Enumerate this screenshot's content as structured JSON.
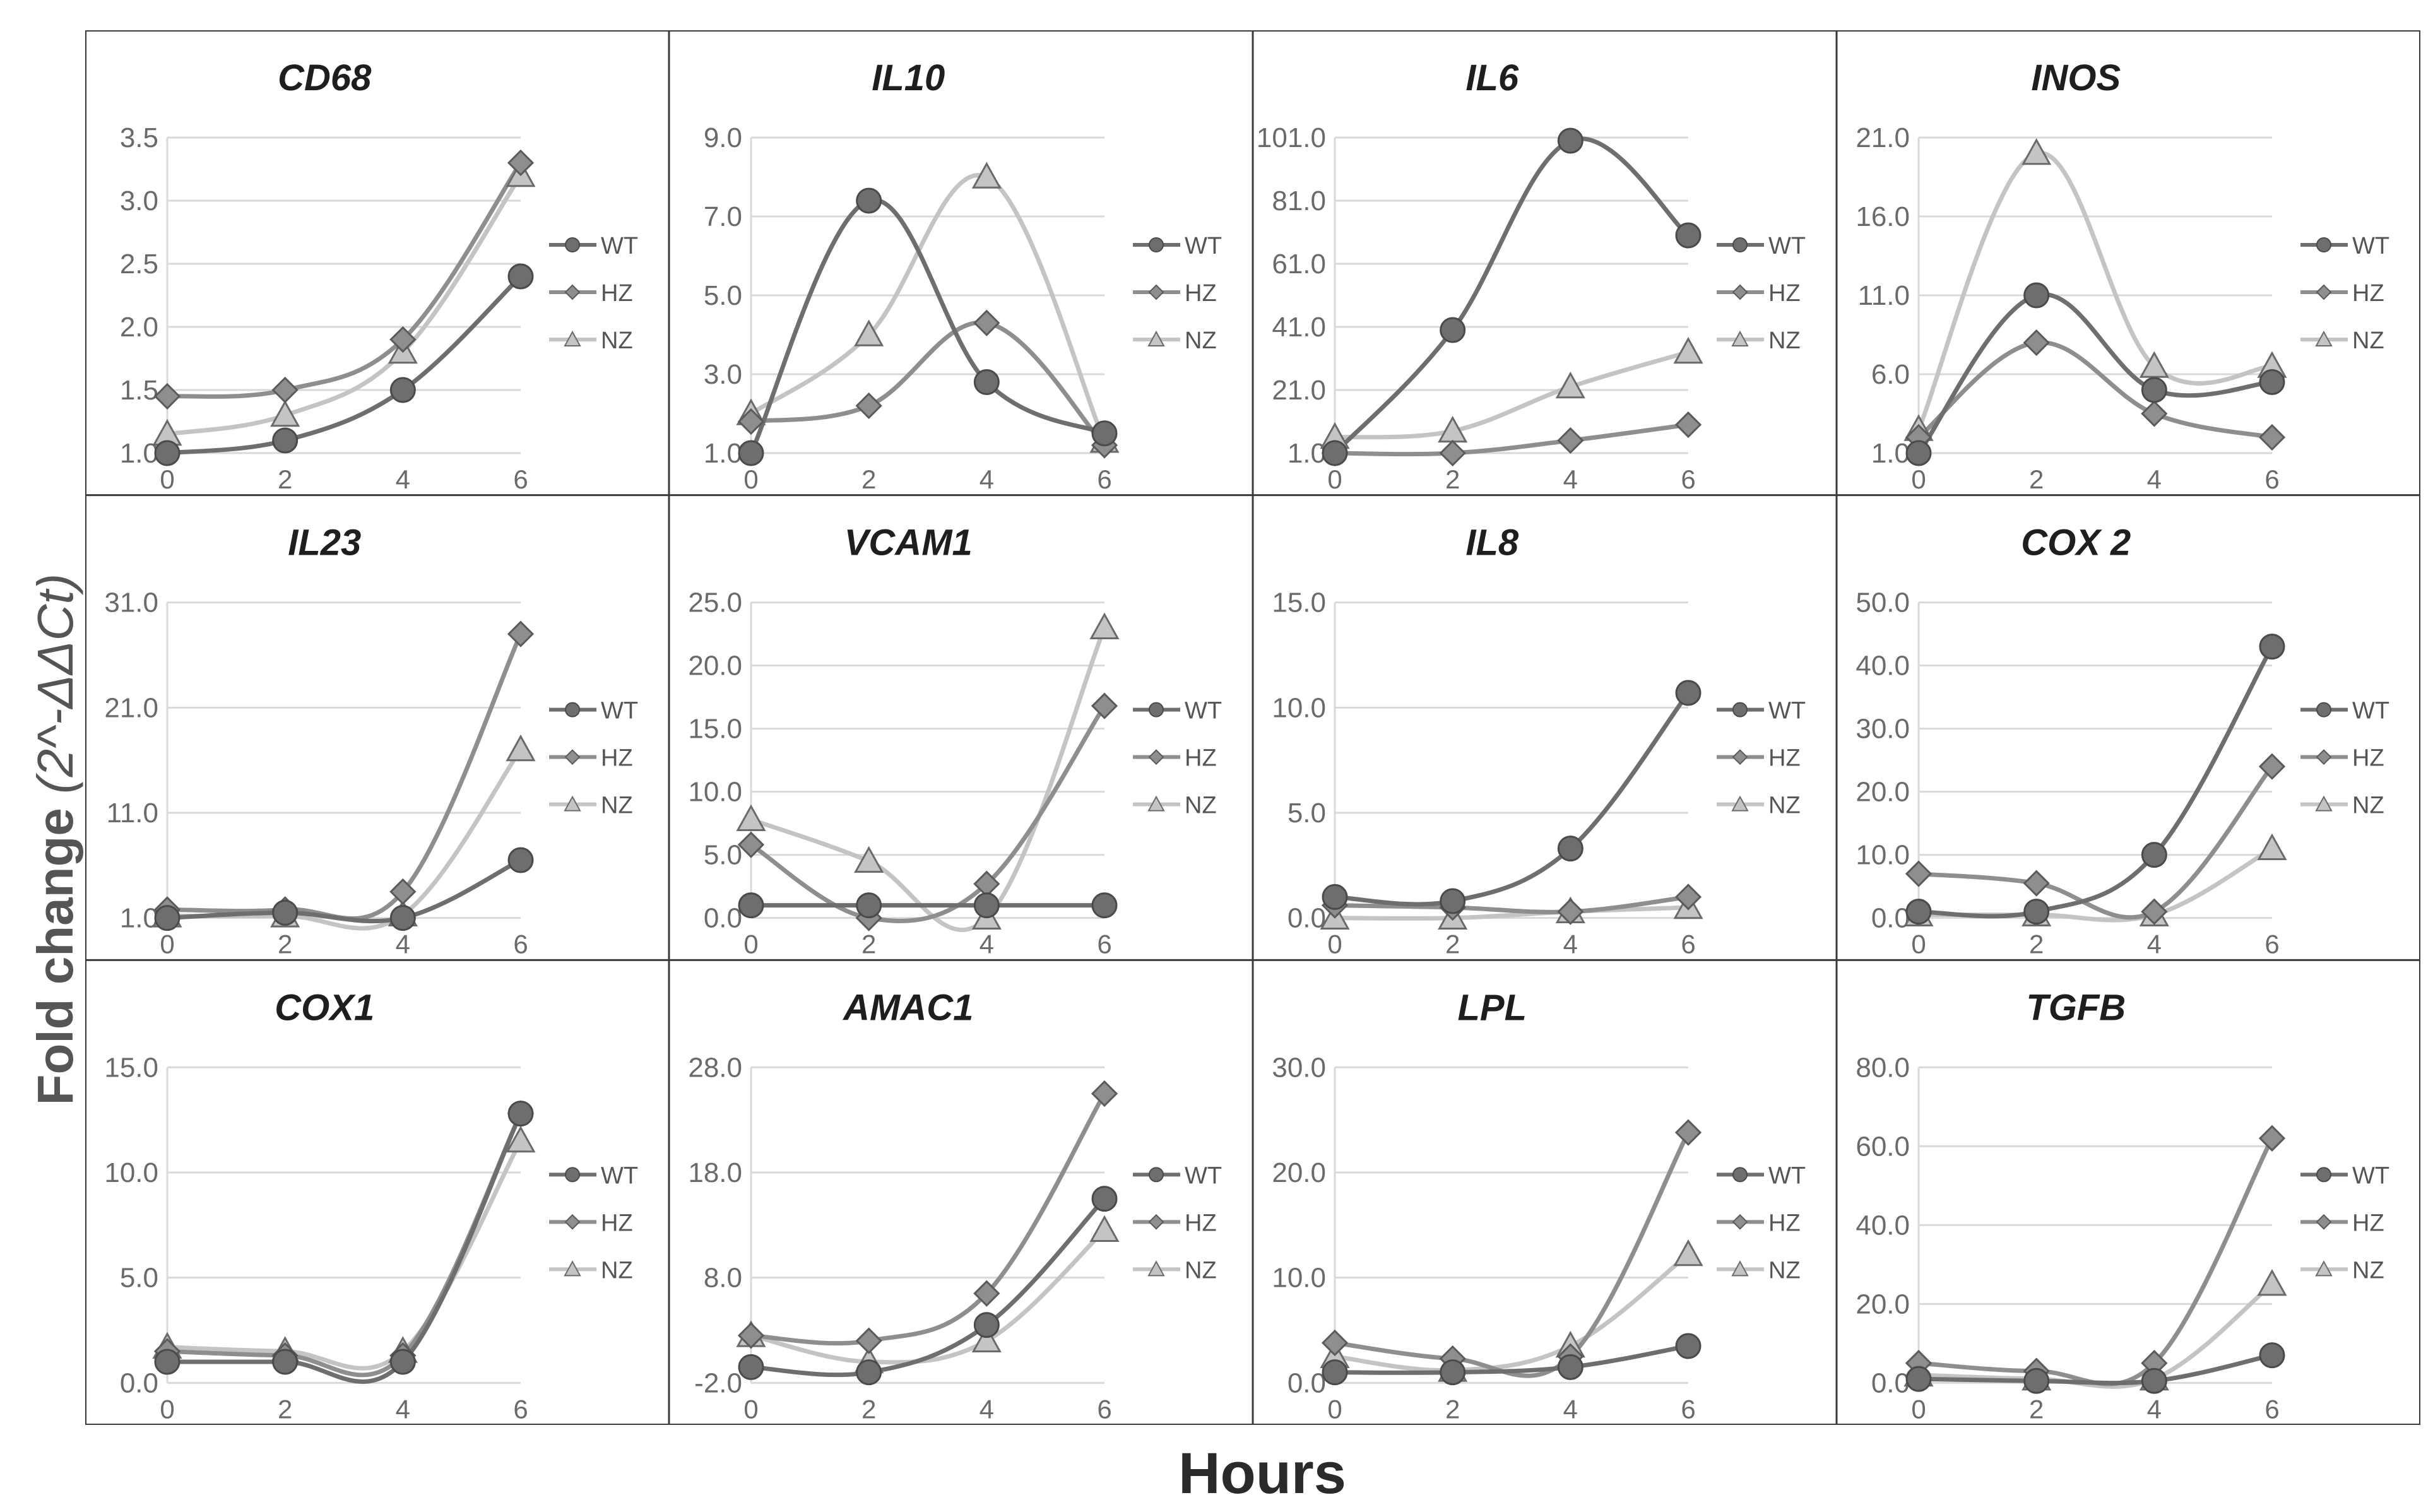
{
  "figure": {
    "ylabel_main": "Fold change ",
    "ylabel_formula": "(2^-ΔΔCt)",
    "xlabel": "Hours",
    "series_colors": {
      "WT": "#6e6e6e",
      "HZ": "#8e8e8e",
      "NZ": "#c4c4c4"
    },
    "frame_color": "#3a3a3a",
    "grid_color": "#d9d9d9"
  },
  "chart_data": [
    {
      "type": "line",
      "title": "CD68",
      "categories": [
        "0",
        "2",
        "4",
        "6"
      ],
      "ylim": [
        1.0,
        3.5
      ],
      "yticks": [
        "1.0",
        "1.5",
        "2.0",
        "2.5",
        "3.0",
        "3.5"
      ],
      "series": [
        {
          "name": "WT",
          "marker": "circle",
          "values": [
            1.0,
            1.1,
            1.5,
            2.4
          ]
        },
        {
          "name": "HZ",
          "marker": "diamond",
          "values": [
            1.45,
            1.5,
            1.9,
            3.3
          ]
        },
        {
          "name": "NZ",
          "marker": "triangle",
          "values": [
            1.15,
            1.3,
            1.8,
            3.2
          ]
        }
      ],
      "legend": "right"
    },
    {
      "type": "line",
      "title": "IL10",
      "categories": [
        "0",
        "2",
        "4",
        "6"
      ],
      "ylim": [
        1.0,
        9.0
      ],
      "yticks": [
        "1.0",
        "3.0",
        "5.0",
        "7.0",
        "9.0"
      ],
      "series": [
        {
          "name": "WT",
          "marker": "circle",
          "values": [
            1.0,
            7.4,
            2.8,
            1.5
          ]
        },
        {
          "name": "HZ",
          "marker": "diamond",
          "values": [
            1.8,
            2.2,
            4.3,
            1.2
          ]
        },
        {
          "name": "NZ",
          "marker": "triangle",
          "values": [
            2.0,
            4.0,
            8.0,
            1.3
          ]
        }
      ],
      "legend": "right"
    },
    {
      "type": "line",
      "title": "IL6",
      "categories": [
        "0",
        "2",
        "4",
        "6"
      ],
      "ylim": [
        1.0,
        101.0
      ],
      "yticks": [
        "1.0",
        "21.0",
        "41.0",
        "61.0",
        "81.0",
        "101.0"
      ],
      "series": [
        {
          "name": "WT",
          "marker": "circle",
          "values": [
            1.0,
            40.0,
            100.0,
            70.0
          ]
        },
        {
          "name": "HZ",
          "marker": "diamond",
          "values": [
            1.0,
            1.0,
            5.0,
            10.0
          ]
        },
        {
          "name": "NZ",
          "marker": "triangle",
          "values": [
            6.0,
            8.0,
            22.0,
            33.0
          ]
        }
      ],
      "legend": "right"
    },
    {
      "type": "line",
      "title": "INOS",
      "categories": [
        "0",
        "2",
        "4",
        "6"
      ],
      "ylim": [
        1.0,
        21.0
      ],
      "yticks": [
        "1.0",
        "6.0",
        "11.0",
        "16.0",
        "21.0"
      ],
      "series": [
        {
          "name": "WT",
          "marker": "circle",
          "values": [
            1.0,
            11.0,
            5.0,
            5.5
          ]
        },
        {
          "name": "HZ",
          "marker": "diamond",
          "values": [
            2.0,
            8.0,
            3.5,
            2.0
          ]
        },
        {
          "name": "NZ",
          "marker": "triangle",
          "values": [
            2.5,
            20.0,
            6.5,
            6.5
          ]
        }
      ],
      "legend": "right"
    },
    {
      "type": "line",
      "title": "IL23",
      "categories": [
        "0",
        "2",
        "4",
        "6"
      ],
      "ylim": [
        1.0,
        31.0
      ],
      "yticks": [
        "1.0",
        "11.0",
        "21.0",
        "31.0"
      ],
      "series": [
        {
          "name": "WT",
          "marker": "circle",
          "values": [
            1.0,
            1.5,
            1.0,
            6.5
          ]
        },
        {
          "name": "HZ",
          "marker": "diamond",
          "values": [
            1.8,
            1.8,
            3.5,
            28.0
          ]
        },
        {
          "name": "NZ",
          "marker": "triangle",
          "values": [
            1.2,
            1.2,
            1.3,
            17.0
          ]
        }
      ],
      "legend": "right"
    },
    {
      "type": "line",
      "title": "VCAM1",
      "categories": [
        "0",
        "2",
        "4",
        "6"
      ],
      "ylim": [
        0.0,
        25.0
      ],
      "yticks": [
        "0.0",
        "5.0",
        "10.0",
        "15.0",
        "20.0",
        "25.0"
      ],
      "series": [
        {
          "name": "WT",
          "marker": "circle",
          "values": [
            1.0,
            1.0,
            1.0,
            1.0
          ]
        },
        {
          "name": "HZ",
          "marker": "diamond",
          "values": [
            5.8,
            0.0,
            2.7,
            16.8
          ]
        },
        {
          "name": "NZ",
          "marker": "triangle",
          "values": [
            7.8,
            4.5,
            0.0,
            23.0
          ]
        }
      ],
      "legend": "right"
    },
    {
      "type": "line",
      "title": "IL8",
      "categories": [
        "0",
        "2",
        "4",
        "6"
      ],
      "ylim": [
        0.0,
        15.0
      ],
      "yticks": [
        "0.0",
        "5.0",
        "10.0",
        "15.0"
      ],
      "series": [
        {
          "name": "WT",
          "marker": "circle",
          "values": [
            1.0,
            0.8,
            3.3,
            10.7
          ]
        },
        {
          "name": "HZ",
          "marker": "diamond",
          "values": [
            0.6,
            0.5,
            0.3,
            1.0
          ]
        },
        {
          "name": "NZ",
          "marker": "triangle",
          "values": [
            0.0,
            0.0,
            0.3,
            0.5
          ]
        }
      ],
      "legend": "right"
    },
    {
      "type": "line",
      "title": "COX 2",
      "categories": [
        "0",
        "2",
        "4",
        "6"
      ],
      "ylim": [
        0.0,
        50.0
      ],
      "yticks": [
        "0.0",
        "10.0",
        "20.0",
        "30.0",
        "40.0",
        "50.0"
      ],
      "series": [
        {
          "name": "WT",
          "marker": "circle",
          "values": [
            1.0,
            1.0,
            10.0,
            43.0
          ]
        },
        {
          "name": "HZ",
          "marker": "diamond",
          "values": [
            7.0,
            5.5,
            1.0,
            24.0
          ]
        },
        {
          "name": "NZ",
          "marker": "triangle",
          "values": [
            0.5,
            0.5,
            0.5,
            11.0
          ]
        }
      ],
      "legend": "right"
    },
    {
      "type": "line",
      "title": "COX1",
      "categories": [
        "0",
        "2",
        "4",
        "6"
      ],
      "ylim": [
        0.0,
        15.0
      ],
      "yticks": [
        "0.0",
        "5.0",
        "10.0",
        "15.0"
      ],
      "series": [
        {
          "name": "WT",
          "marker": "circle",
          "values": [
            1.0,
            1.0,
            1.0,
            12.8
          ]
        },
        {
          "name": "HZ",
          "marker": "diamond",
          "values": [
            1.5,
            1.3,
            1.3,
            12.8
          ]
        },
        {
          "name": "NZ",
          "marker": "triangle",
          "values": [
            1.7,
            1.5,
            1.5,
            11.5
          ]
        }
      ],
      "legend": "right"
    },
    {
      "type": "line",
      "title": "AMAC1",
      "categories": [
        "0",
        "2",
        "4",
        "6"
      ],
      "ylim": [
        -2.0,
        28.0
      ],
      "yticks": [
        "-2.0",
        "8.0",
        "18.0",
        "28.0"
      ],
      "series": [
        {
          "name": "WT",
          "marker": "circle",
          "values": [
            -0.5,
            -1.0,
            3.5,
            15.5
          ]
        },
        {
          "name": "HZ",
          "marker": "diamond",
          "values": [
            2.5,
            2.0,
            6.5,
            25.5
          ]
        },
        {
          "name": "NZ",
          "marker": "triangle",
          "values": [
            2.5,
            0.0,
            2.0,
            12.5
          ]
        }
      ],
      "legend": "right"
    },
    {
      "type": "line",
      "title": "LPL",
      "categories": [
        "0",
        "2",
        "4",
        "6"
      ],
      "ylim": [
        0.0,
        30.0
      ],
      "yticks": [
        "0.0",
        "10.0",
        "20.0",
        "30.0"
      ],
      "series": [
        {
          "name": "WT",
          "marker": "circle",
          "values": [
            1.0,
            1.0,
            1.5,
            3.5
          ]
        },
        {
          "name": "HZ",
          "marker": "diamond",
          "values": [
            3.8,
            2.3,
            2.5,
            23.8
          ]
        },
        {
          "name": "NZ",
          "marker": "triangle",
          "values": [
            2.5,
            1.2,
            3.5,
            12.2
          ]
        }
      ],
      "legend": "right"
    },
    {
      "type": "line",
      "title": "TGFB",
      "categories": [
        "0",
        "2",
        "4",
        "6"
      ],
      "ylim": [
        0.0,
        80.0
      ],
      "yticks": [
        "0.0",
        "20.0",
        "40.0",
        "60.0",
        "80.0"
      ],
      "series": [
        {
          "name": "WT",
          "marker": "circle",
          "values": [
            1.0,
            0.5,
            0.5,
            7.0
          ]
        },
        {
          "name": "HZ",
          "marker": "diamond",
          "values": [
            5.0,
            3.0,
            5.0,
            62.0
          ]
        },
        {
          "name": "NZ",
          "marker": "triangle",
          "values": [
            2.0,
            1.0,
            1.0,
            25.0
          ]
        }
      ],
      "legend": "right"
    }
  ]
}
